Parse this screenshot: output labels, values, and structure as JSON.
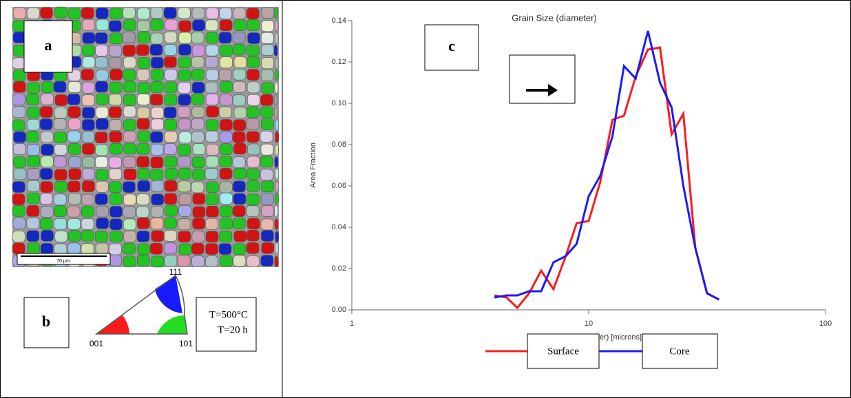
{
  "panels": {
    "a": {
      "label": "a",
      "scale_bar": "70 µm"
    },
    "b": {
      "label": "b",
      "corners": [
        "001",
        "101",
        "111"
      ],
      "conditions": [
        "T=500°C",
        "T=20 h"
      ]
    },
    "c": {
      "label": "c"
    }
  },
  "chart_data": {
    "type": "line",
    "title": "Grain Size (diameter)",
    "x_label": "Grain Size (Diameter) [microns]",
    "y_label": "Area Fraction",
    "xscale": "log",
    "xlim": [
      1,
      100
    ],
    "xticks": [
      1,
      10,
      100
    ],
    "ylim": [
      0,
      0.14
    ],
    "yticks": [
      {
        "value": 0,
        "label": "0.00"
      },
      0.02,
      0.04,
      0.06,
      0.08,
      {
        "value": 0.1,
        "label": "0.10"
      },
      0.12,
      0.14
    ],
    "x": [
      4.0,
      4.5,
      5.0,
      5.6,
      6.3,
      7.1,
      8.0,
      8.9,
      10.0,
      11.2,
      12.6,
      14.1,
      15.8,
      17.8,
      20.0,
      22.4,
      25.1,
      28.2,
      31.6,
      35.5
    ],
    "series": [
      {
        "name": "Surface",
        "color": "#ff1a1a",
        "values": [
          0.007,
          0.006,
          0.001,
          0.008,
          0.019,
          0.01,
          0.026,
          0.042,
          0.043,
          0.062,
          0.092,
          0.094,
          0.113,
          0.126,
          0.127,
          0.085,
          0.095,
          0.03,
          0.008,
          0.005
        ]
      },
      {
        "name": "Core",
        "color": "#1a1aff",
        "values": [
          0.006,
          0.007,
          0.007,
          0.009,
          0.009,
          0.023,
          0.026,
          0.032,
          0.055,
          0.065,
          0.084,
          0.118,
          0.112,
          0.135,
          0.11,
          0.098,
          0.06,
          0.03,
          0.008,
          0.005
        ]
      }
    ]
  }
}
